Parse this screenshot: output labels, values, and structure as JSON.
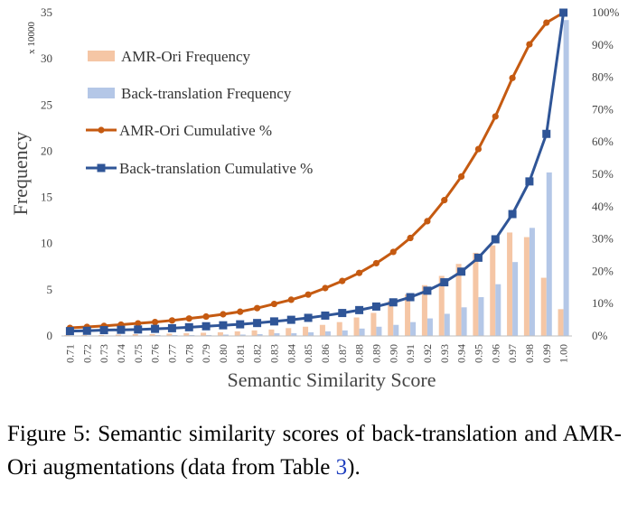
{
  "chart_data": {
    "type": "bar",
    "categories": [
      "0.71",
      "0.72",
      "0.73",
      "0.74",
      "0.75",
      "0.76",
      "0.77",
      "0.78",
      "0.79",
      "0.80",
      "0.81",
      "0.82",
      "0.83",
      "0.84",
      "0.85",
      "0.86",
      "0.87",
      "0.88",
      "0.89",
      "0.90",
      "0.91",
      "0.92",
      "0.93",
      "0.94",
      "0.95",
      "0.96",
      "0.97",
      "0.98",
      "0.99",
      "1.00"
    ],
    "xlabel": "Semantic Similarity Score",
    "ylabel": "Frequency",
    "ylabel_multiplier": "x 10000",
    "ylim": [
      0,
      35
    ],
    "yticks": [
      0,
      5,
      10,
      15,
      20,
      25,
      30,
      35
    ],
    "y2lim": [
      0,
      100
    ],
    "y2ticks": [
      "0%",
      "10%",
      "20%",
      "30%",
      "40%",
      "50%",
      "60%",
      "70%",
      "80%",
      "90%",
      "100%"
    ],
    "legend_position": "top-left",
    "series": [
      {
        "name": "AMR-Ori Frequency",
        "kind": "bar",
        "color": "#f5c6a5",
        "values": [
          0.1,
          0.1,
          0.1,
          0.15,
          0.2,
          0.2,
          0.25,
          0.3,
          0.35,
          0.4,
          0.5,
          0.6,
          0.7,
          0.85,
          1.0,
          1.2,
          1.5,
          2.0,
          2.5,
          3.8,
          4.5,
          5.5,
          6.5,
          7.8,
          9.0,
          9.8,
          11.2,
          10.7,
          6.3,
          2.9
        ]
      },
      {
        "name": "Back-translation Frequency",
        "kind": "bar",
        "color": "#b4c7e7",
        "values": [
          0.05,
          0.05,
          0.05,
          0.05,
          0.05,
          0.1,
          0.1,
          0.1,
          0.1,
          0.15,
          0.15,
          0.2,
          0.3,
          0.3,
          0.4,
          0.5,
          0.6,
          0.8,
          1.0,
          1.2,
          1.5,
          1.9,
          2.4,
          3.1,
          4.2,
          5.6,
          8.0,
          11.7,
          17.7,
          34.2
        ]
      },
      {
        "name": "AMR-Ori Cumulative %",
        "kind": "line",
        "axis": "right",
        "color": "#c55a11",
        "values": [
          2.5,
          2.8,
          3.1,
          3.5,
          3.9,
          4.3,
          4.8,
          5.4,
          6.0,
          6.7,
          7.5,
          8.6,
          9.9,
          11.2,
          12.8,
          14.8,
          17.0,
          19.5,
          22.5,
          26.0,
          30.3,
          35.5,
          42.0,
          49.3,
          57.8,
          67.9,
          79.8,
          90.2,
          96.9,
          100
        ]
      },
      {
        "name": "Back-translation Cumulative %",
        "kind": "line",
        "axis": "right",
        "color": "#2f5597",
        "values": [
          1.5,
          1.6,
          1.8,
          1.9,
          2.0,
          2.2,
          2.4,
          2.7,
          3.0,
          3.3,
          3.6,
          4.0,
          4.5,
          5.0,
          5.6,
          6.3,
          7.1,
          8.0,
          9.1,
          10.4,
          12.0,
          14.0,
          16.6,
          19.9,
          24.2,
          29.9,
          37.7,
          47.8,
          62.5,
          100
        ]
      }
    ]
  },
  "caption": {
    "prefix": "Figure 5:   Semantic similarity scores of back-translation and AMR-Ori augmentations (data from Table ",
    "ref": "3",
    "suffix": ")."
  }
}
